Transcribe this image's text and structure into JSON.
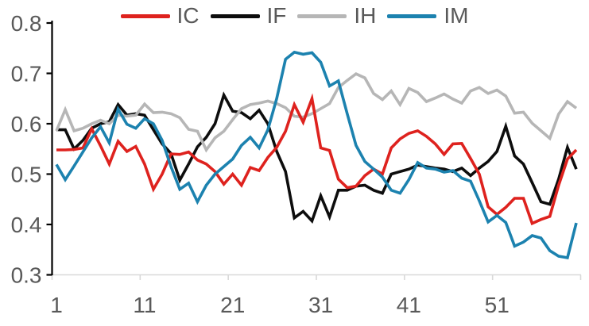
{
  "chart_data": {
    "type": "line",
    "title": "",
    "xlabel": "",
    "ylabel": "",
    "x_start": 1,
    "x_end": 60,
    "x_tick_positions": [
      1,
      11,
      21,
      31,
      41,
      51
    ],
    "x_tick_labels": [
      "1",
      "11",
      "21",
      "31",
      "41",
      "51"
    ],
    "y_tick_labels": [
      "0.8",
      "0.7",
      "0.6",
      "0.5",
      "0.4",
      "0.3"
    ],
    "y_tick_values": [
      0.8,
      0.7,
      0.6,
      0.5,
      0.4,
      0.3
    ],
    "ylim": [
      0.3,
      0.8
    ],
    "grid": false,
    "legend_position": "top-center",
    "series": [
      {
        "name": "IC",
        "color": "#de221e",
        "values": [
          0.548,
          0.548,
          0.549,
          0.552,
          0.59,
          0.556,
          0.52,
          0.565,
          0.545,
          0.555,
          0.52,
          0.47,
          0.5,
          0.54,
          0.539,
          0.544,
          0.528,
          0.52,
          0.505,
          0.48,
          0.5,
          0.478,
          0.513,
          0.507,
          0.533,
          0.553,
          0.585,
          0.638,
          0.603,
          0.65,
          0.552,
          0.547,
          0.49,
          0.473,
          0.476,
          0.497,
          0.51,
          0.5,
          0.552,
          0.57,
          0.581,
          0.586,
          0.575,
          0.56,
          0.539,
          0.56,
          0.561,
          0.531,
          0.5,
          0.435,
          0.42,
          0.434,
          0.452,
          0.452,
          0.402,
          0.41,
          0.416,
          0.478,
          0.53,
          0.548
        ]
      },
      {
        "name": "IF",
        "color": "#0d0d0d",
        "values": [
          0.588,
          0.588,
          0.55,
          0.567,
          0.591,
          0.6,
          0.604,
          0.638,
          0.617,
          0.62,
          0.617,
          0.588,
          0.56,
          0.541,
          0.488,
          0.52,
          0.554,
          0.573,
          0.6,
          0.657,
          0.625,
          0.622,
          0.61,
          0.627,
          0.6,
          0.545,
          0.505,
          0.413,
          0.426,
          0.407,
          0.457,
          0.415,
          0.468,
          0.468,
          0.476,
          0.478,
          0.468,
          0.462,
          0.5,
          0.505,
          0.51,
          0.518,
          0.515,
          0.512,
          0.51,
          0.505,
          0.512,
          0.497,
          0.512,
          0.525,
          0.545,
          0.595,
          0.536,
          0.52,
          0.483,
          0.445,
          0.44,
          0.49,
          0.553,
          0.51
        ]
      },
      {
        "name": "IH",
        "color": "#b6b6b6",
        "values": [
          0.586,
          0.628,
          0.586,
          0.591,
          0.6,
          0.607,
          0.6,
          0.617,
          0.615,
          0.617,
          0.639,
          0.622,
          0.623,
          0.62,
          0.612,
          0.589,
          0.585,
          0.548,
          0.572,
          0.585,
          0.608,
          0.63,
          0.638,
          0.641,
          0.645,
          0.64,
          0.632,
          0.615,
          0.613,
          0.62,
          0.63,
          0.64,
          0.672,
          0.686,
          0.699,
          0.691,
          0.66,
          0.648,
          0.665,
          0.638,
          0.67,
          0.662,
          0.644,
          0.651,
          0.659,
          0.649,
          0.641,
          0.665,
          0.672,
          0.66,
          0.667,
          0.655,
          0.621,
          0.623,
          0.601,
          0.586,
          0.571,
          0.619,
          0.644,
          0.631
        ]
      },
      {
        "name": "IM",
        "color": "#1c82af",
        "values": [
          0.519,
          0.489,
          0.516,
          0.544,
          0.572,
          0.594,
          0.562,
          0.629,
          0.599,
          0.591,
          0.61,
          0.6,
          0.567,
          0.515,
          0.47,
          0.482,
          0.445,
          0.478,
          0.5,
          0.515,
          0.53,
          0.557,
          0.573,
          0.552,
          0.588,
          0.65,
          0.728,
          0.742,
          0.738,
          0.741,
          0.722,
          0.675,
          0.685,
          0.62,
          0.557,
          0.525,
          0.51,
          0.494,
          0.468,
          0.462,
          0.489,
          0.523,
          0.512,
          0.51,
          0.504,
          0.507,
          0.492,
          0.486,
          0.447,
          0.405,
          0.418,
          0.404,
          0.357,
          0.365,
          0.378,
          0.373,
          0.348,
          0.337,
          0.334,
          0.403
        ]
      }
    ],
    "draw_order": [
      "IF",
      "IH",
      "IC",
      "IM"
    ],
    "style": {
      "axis_text_color": "#595959",
      "y_axis_line_color": "#000000",
      "x_axis_line_color": "#d9d9d9",
      "x_tick_color": "#d9d9d9",
      "y_tick_color": "#000000",
      "line_width": 3.6
    }
  }
}
